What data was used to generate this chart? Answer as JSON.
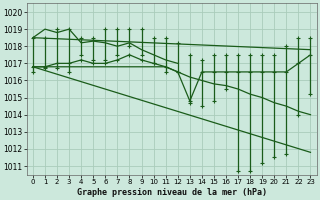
{
  "title": "Graphe pression niveau de la mer (hPa)",
  "xlim": [
    -0.5,
    23.5
  ],
  "ylim": [
    1010.5,
    1020.5
  ],
  "yticks": [
    1011,
    1012,
    1013,
    1014,
    1015,
    1016,
    1017,
    1018,
    1019,
    1020
  ],
  "xticks": [
    0,
    1,
    2,
    3,
    4,
    5,
    6,
    7,
    8,
    9,
    10,
    11,
    12,
    13,
    14,
    15,
    16,
    17,
    18,
    19,
    20,
    21,
    22,
    23
  ],
  "background_color": "#cce8dc",
  "grid_color": "#aaccbb",
  "line_color": "#1a5c1a",
  "max_values": [
    1018.5,
    1018.5,
    1019.0,
    1019.0,
    1018.5,
    1018.5,
    1019.0,
    1019.0,
    1019.0,
    1019.0,
    1018.5,
    1018.5,
    1018.2,
    1017.5,
    1017.2,
    1017.5,
    1017.5,
    1017.5,
    1017.5,
    1017.5,
    1017.5,
    1018.0,
    1018.5,
    1018.5
  ],
  "min_values": [
    1016.5,
    1016.7,
    1016.7,
    1016.5,
    1017.5,
    1017.2,
    1017.2,
    1017.5,
    1018.0,
    1017.5,
    1017.0,
    1016.5,
    1016.5,
    1014.7,
    1014.5,
    1014.8,
    1015.5,
    1010.7,
    1010.7,
    1011.2,
    1011.5,
    1011.7,
    1014.0,
    1015.2
  ],
  "mean_values": [
    1016.8,
    1016.8,
    1017.0,
    1017.0,
    1017.2,
    1017.0,
    1017.0,
    1017.2,
    1017.5,
    1017.2,
    1017.0,
    1016.8,
    1016.5,
    1014.8,
    1016.5,
    1016.5,
    1016.5,
    1016.5,
    1016.5,
    1016.5,
    1016.5,
    1016.5,
    1017.0,
    1017.5
  ],
  "line1_x": [
    0,
    1,
    2,
    3,
    4,
    5,
    6,
    7,
    8,
    9,
    10,
    11,
    12
  ],
  "line1_y": [
    1018.5,
    1019.0,
    1018.8,
    1019.0,
    1018.2,
    1018.3,
    1018.2,
    1018.0,
    1018.2,
    1017.8,
    1017.5,
    1017.2,
    1017.0
  ],
  "line2_x": [
    0,
    1,
    2,
    3,
    4,
    5,
    6,
    7,
    8,
    9,
    10,
    11,
    12,
    13,
    14,
    15,
    16,
    17,
    18,
    19,
    20,
    21,
    22,
    23
  ],
  "line2_y": [
    1016.8,
    1016.8,
    1016.8,
    1016.8,
    1016.8,
    1016.8,
    1016.8,
    1016.8,
    1016.8,
    1016.8,
    1016.8,
    1016.8,
    1016.5,
    1016.2,
    1016.0,
    1015.8,
    1015.7,
    1015.5,
    1015.2,
    1015.0,
    1014.7,
    1014.5,
    1014.2,
    1014.0
  ],
  "trend1_x": [
    0,
    23
  ],
  "trend1_y": [
    1018.5,
    1017.8
  ],
  "trend2_x": [
    0,
    23
  ],
  "trend2_y": [
    1016.8,
    1011.8
  ]
}
